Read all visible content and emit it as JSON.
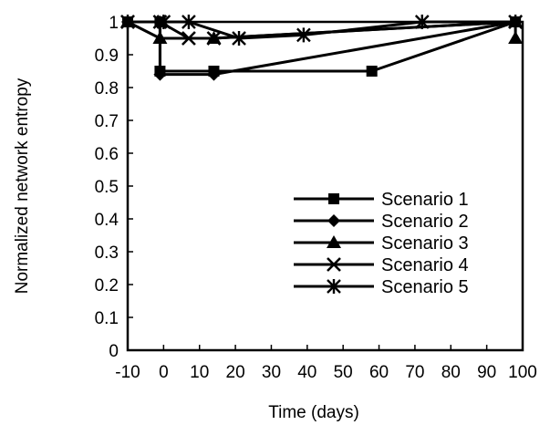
{
  "chart_data": {
    "type": "line",
    "xlabel": "Time (days)",
    "ylabel": "Normalized network entropy",
    "xlim": [
      -10,
      100
    ],
    "ylim": [
      0,
      1
    ],
    "xticks": [
      "-10",
      "0",
      "10",
      "20",
      "30",
      "40",
      "50",
      "60",
      "70",
      "80",
      "90",
      "100"
    ],
    "yticks": [
      "0",
      "0.1",
      "0.2",
      "0.3",
      "0.4",
      "0.5",
      "0.6",
      "0.7",
      "0.8",
      "0.9",
      "1"
    ],
    "grid": false,
    "legend_position": "bottom-right",
    "series": [
      {
        "name": "Scenario 1",
        "marker": "square",
        "x": [
          -10,
          -1,
          -1,
          14,
          58,
          98
        ],
        "y": [
          1,
          1,
          0.85,
          0.85,
          0.85,
          1
        ]
      },
      {
        "name": "Scenario 2",
        "marker": "diamond",
        "x": [
          -10,
          -1,
          -1,
          14,
          98
        ],
        "y": [
          1,
          1,
          0.84,
          0.84,
          1
        ]
      },
      {
        "name": "Scenario 3",
        "marker": "triangle",
        "x": [
          -10,
          -1,
          14,
          98,
          98
        ],
        "y": [
          1,
          0.95,
          0.95,
          1,
          0.95
        ]
      },
      {
        "name": "Scenario 4",
        "marker": "x",
        "x": [
          -10,
          -1,
          7,
          14,
          98
        ],
        "y": [
          1,
          1,
          0.95,
          0.95,
          1
        ]
      },
      {
        "name": "Scenario 5",
        "marker": "asterisk",
        "x": [
          -10,
          0,
          7,
          21,
          39,
          72,
          98
        ],
        "y": [
          1,
          1,
          1,
          0.95,
          0.96,
          1,
          1
        ]
      }
    ]
  }
}
